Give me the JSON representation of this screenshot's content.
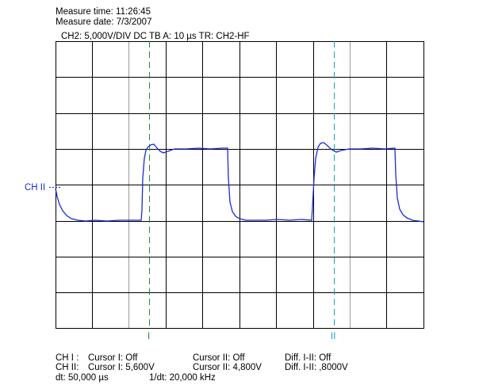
{
  "header": {
    "measure_time": "Measure time: 11:26:45",
    "measure_date": "Measure date: 7/3/2007",
    "settings": "CH2: 5,000V/DIV DC   TB A: 10 µs   TR: CH2-HF"
  },
  "channel_label": "CH II",
  "cursor_labels": {
    "cursor1": "I",
    "cursor2": "II"
  },
  "footer": {
    "ch1_label": "CH I :",
    "ch1_cursor1": "Cursor I: Off",
    "ch1_cursor2": "Cursor II: Off",
    "ch1_diff": "Diff. I-II: Off",
    "ch2_label": "CH II:",
    "ch2_cursor1": "Cursor I: 5,600V",
    "ch2_cursor2": "Cursor II: 4,800V",
    "ch2_diff": "Diff. I-II: ,8000V",
    "dt": "dt: 50,000 µs",
    "inv_dt": "1/dt: 20,000 kHz"
  },
  "colors": {
    "trace": "#1a2bd6",
    "cursor1": "#1f8a2e",
    "cursor2": "#1aa3b8",
    "grid": "#000000",
    "minor_grid": "#9a9a9a"
  }
}
